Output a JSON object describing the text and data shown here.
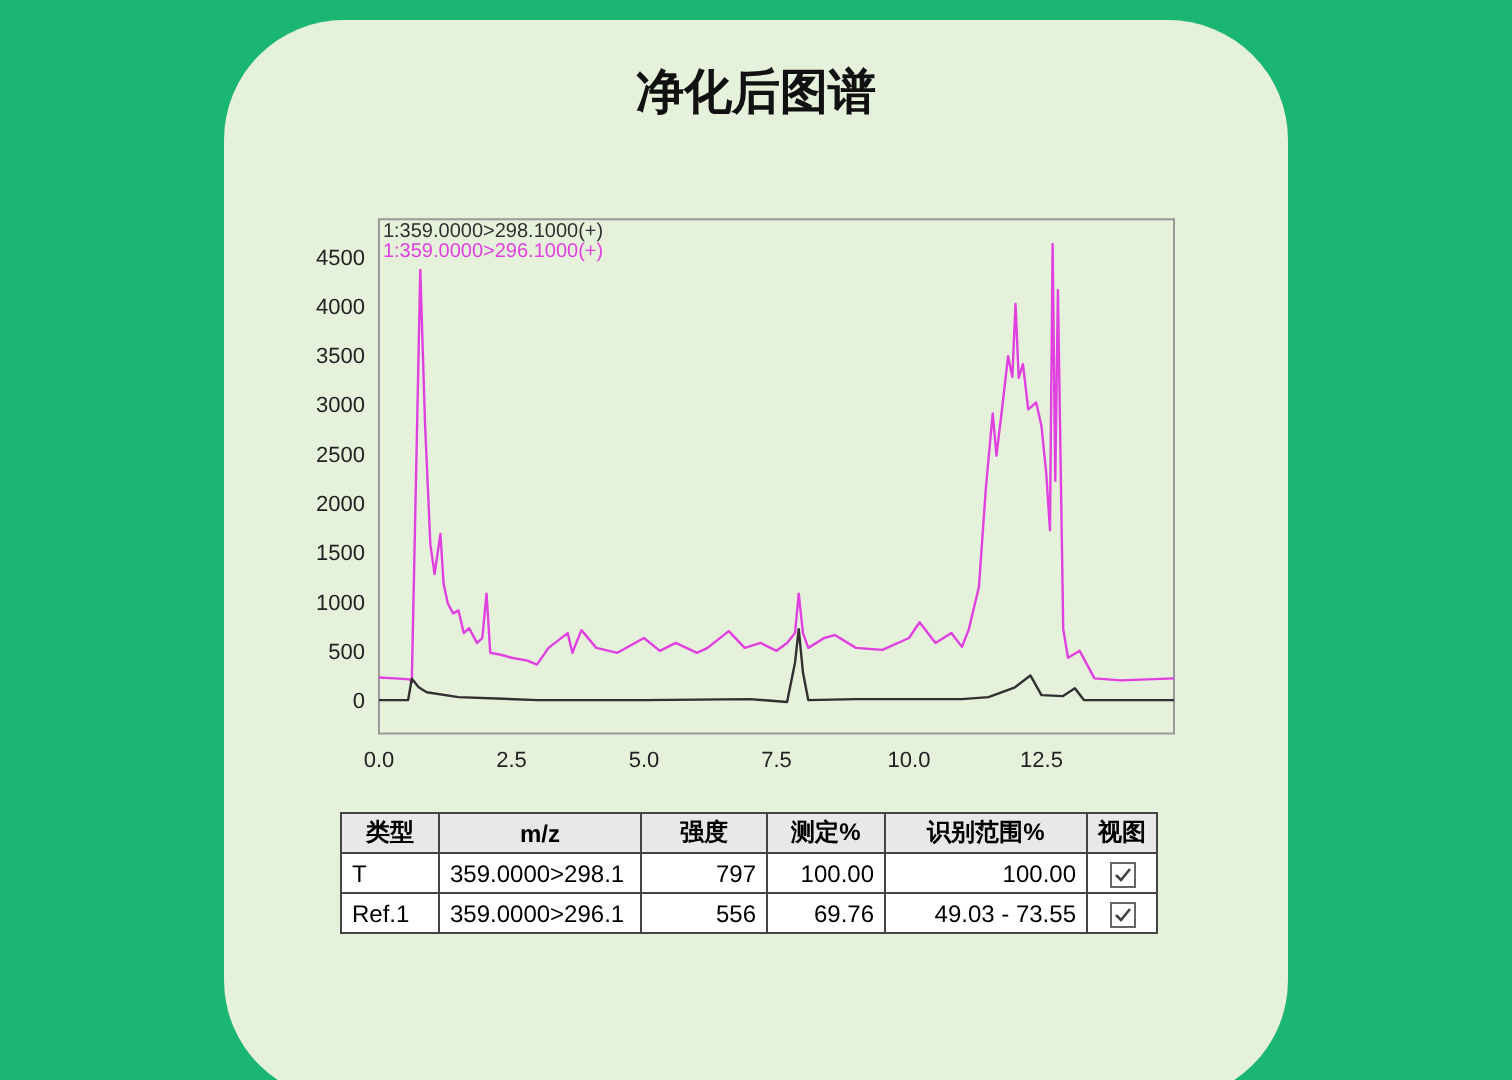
{
  "chart_data": [
    {
      "type": "line",
      "title": "净化后图谱",
      "legend": "top left",
      "grid": false,
      "marker": "none",
      "line_style": "solid",
      "xlim": [
        0,
        15
      ],
      "ylim": [
        -320,
        4900
      ],
      "xticks": [
        {
          "value": 0,
          "label": "0.0"
        },
        {
          "value": 2.5,
          "label": "2.5"
        },
        {
          "value": 5,
          "label": "5.0"
        },
        {
          "value": 7.5,
          "label": "7.5"
        },
        {
          "value": 10,
          "label": "10.0"
        },
        {
          "value": 12.5,
          "label": "12.5"
        }
      ],
      "yticks": [
        0,
        500,
        1000,
        1500,
        2000,
        2500,
        3000,
        3500,
        4000,
        4500
      ],
      "series": [
        {
          "name": "1:359.0000>296.1000(+)",
          "color": "#e040e0",
          "x": [
            0,
            0.3,
            0.58,
            0.62,
            0.78,
            0.87,
            0.97,
            1.05,
            1.16,
            1.22,
            1.3,
            1.4,
            1.5,
            1.6,
            1.7,
            1.85,
            1.95,
            2.03,
            2.1,
            2.3,
            2.5,
            2.8,
            2.98,
            3.2,
            3.56,
            3.65,
            3.82,
            4.1,
            4.5,
            5.0,
            5.3,
            5.6,
            6.0,
            6.2,
            6.6,
            6.9,
            7.2,
            7.5,
            7.7,
            7.85,
            7.92,
            8.0,
            8.1,
            8.4,
            8.6,
            9.0,
            9.5,
            10.0,
            10.2,
            10.5,
            10.8,
            11.0,
            11.13,
            11.32,
            11.45,
            11.58,
            11.65,
            11.77,
            11.87,
            11.95,
            12.01,
            12.07,
            12.15,
            12.25,
            12.4,
            12.5,
            12.59,
            12.66,
            12.71,
            12.76,
            12.81,
            12.91,
            13.0,
            13.22,
            13.5,
            14.0,
            15.0
          ],
          "values": [
            250,
            240,
            230,
            200,
            4385,
            2820,
            1600,
            1300,
            1707,
            1200,
            1000,
            900,
            930,
            700,
            750,
            600,
            650,
            1100,
            500,
            480,
            450,
            420,
            380,
            550,
            700,
            500,
            730,
            550,
            500,
            650,
            520,
            600,
            500,
            550,
            720,
            550,
            600,
            520,
            600,
            700,
            1100,
            700,
            550,
            650,
            680,
            550,
            530,
            650,
            810,
            600,
            700,
            560,
            740,
            1170,
            2170,
            2930,
            2500,
            3040,
            3510,
            3300,
            4040,
            3290,
            3430,
            2970,
            3040,
            2800,
            2320,
            1744,
            4650,
            2245,
            4180,
            740,
            450,
            520,
            240,
            220,
            240
          ]
        },
        {
          "name": "1:359.0000>298.1000(+)",
          "color": "#303030",
          "x": [
            0,
            0.55,
            0.62,
            0.75,
            0.9,
            1.5,
            3.0,
            5.0,
            7.0,
            7.7,
            7.85,
            7.92,
            8.0,
            8.1,
            9.0,
            11.0,
            11.5,
            12.0,
            12.29,
            12.5,
            12.9,
            13.13,
            13.3,
            14.0,
            15.0
          ],
          "values": [
            20,
            20,
            237,
            150,
            100,
            50,
            20,
            20,
            30,
            0,
            400,
            740,
            300,
            20,
            30,
            30,
            50,
            150,
            270,
            70,
            60,
            140,
            20,
            20,
            20
          ]
        }
      ]
    },
    {
      "type": "other",
      "categories": [
        "类型",
        "m/z",
        "强度",
        "测定%",
        "识别范围%",
        "视图"
      ],
      "annotations": [
        "T",
        "359.0000>298.1",
        "797",
        "100.00",
        "100.00",
        "Ref.1",
        "359.0000>296.1",
        "556",
        "69.76",
        "49.03 - 73.55"
      ]
    }
  ]
}
